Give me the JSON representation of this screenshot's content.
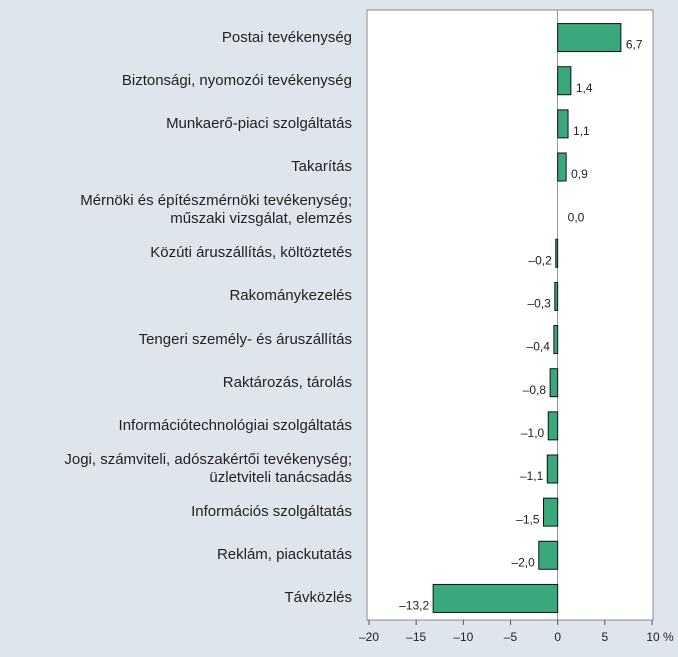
{
  "chart_data": {
    "type": "bar",
    "orientation": "horizontal",
    "categories": [
      "Postai tevékenység",
      "Biztonsági, nyomozói tevékenység",
      "Munkaerő-piaci szolgáltatás",
      "Takarítás",
      "Mérnöki és építészmérnöki tevékenység;\nműszaki vizsgálat, elemzés",
      "Közúti áruszállítás, költöztetés",
      "Rakománykezelés",
      "Tengeri személy- és áruszállítás",
      "Raktározás, tárolás",
      "Információtechnológiai szolgáltatás",
      "Jogi, számviteli, adószakértői tevékenység;\nüzletviteli tanácsadás",
      "Információs szolgáltatás",
      "Reklám, piackutatás",
      "Távközlés"
    ],
    "values": [
      6.7,
      1.4,
      1.1,
      0.9,
      0.0,
      -0.2,
      -0.3,
      -0.4,
      -0.8,
      -1.0,
      -1.1,
      -1.5,
      -2.0,
      -13.2
    ],
    "value_labels": [
      "6,7",
      "1,4",
      "1,1",
      "0,9",
      "0,0",
      "–0,2",
      "–0,3",
      "–0,4",
      "–0,8",
      "–1,0",
      "–1,1",
      "–1,5",
      "–2,0",
      "–13,2"
    ],
    "color": "#3aa87c",
    "xlim": [
      -20,
      10
    ],
    "xticks": [
      {
        "value": -20,
        "label": "–20"
      },
      {
        "value": -15,
        "label": "–15"
      },
      {
        "value": -10,
        "label": "–10"
      },
      {
        "value": -5,
        "label": "–5"
      },
      0,
      5,
      {
        "value": 10,
        "label": "10 %"
      }
    ],
    "grid": false
  }
}
